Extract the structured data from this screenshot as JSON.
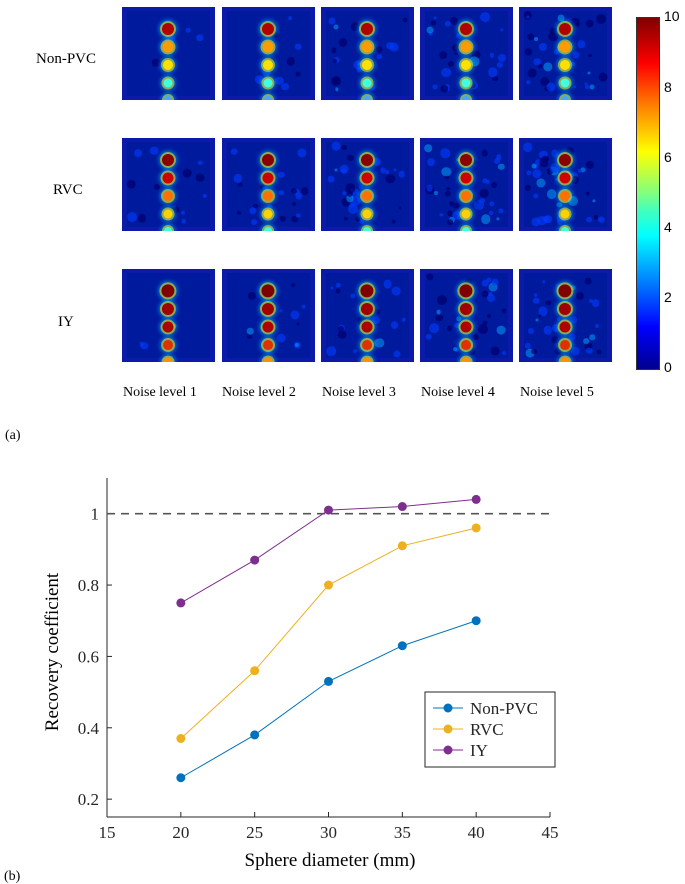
{
  "panel_a": {
    "label": "(a)",
    "rows": [
      "Non-PVC",
      "RVC",
      "IY"
    ],
    "columns": [
      "Noise level 1",
      "Noise level 2",
      "Noise level 3",
      "Noise level 4",
      "Noise level 5"
    ],
    "colorbar": {
      "min": 0,
      "max": 10,
      "ticks": [
        "10",
        "8",
        "6",
        "4",
        "2",
        "0"
      ]
    }
  },
  "panel_b": {
    "label": "(b)"
  },
  "chart_data": {
    "type": "line",
    "xlabel": "Sphere diameter (mm)",
    "ylabel": "Recovery coefficient",
    "xlim": [
      15,
      45
    ],
    "ylim": [
      0.15,
      1.1
    ],
    "x_ticks": [
      "15",
      "20",
      "25",
      "30",
      "35",
      "40",
      "45"
    ],
    "y_ticks": [
      "0.2",
      "0.4",
      "0.6",
      "0.8",
      "1"
    ],
    "x": [
      20,
      25,
      30,
      35,
      40
    ],
    "reference_line": 1,
    "legend_position": "lower-right",
    "series": [
      {
        "name": "Non-PVC",
        "color": "#0072bd",
        "values": [
          0.26,
          0.38,
          0.53,
          0.63,
          0.7
        ]
      },
      {
        "name": "RVC",
        "color": "#edb120",
        "values": [
          0.37,
          0.56,
          0.8,
          0.91,
          0.96
        ]
      },
      {
        "name": "IY",
        "color": "#7e2f8e",
        "values": [
          0.75,
          0.87,
          1.01,
          1.02,
          1.04
        ]
      }
    ]
  }
}
